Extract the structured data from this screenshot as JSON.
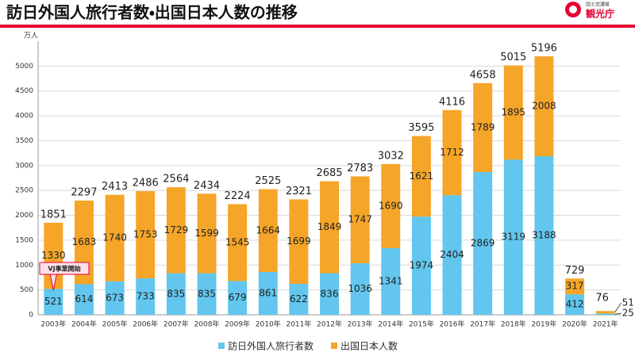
{
  "header": {
    "title": "訪日外国人旅行者数・出国日本人数の推移",
    "ministry": "国土交通省",
    "agency": "観光庁"
  },
  "chart_data": {
    "type": "bar",
    "stacked": true,
    "y_label": "万人",
    "annotation": "VJ事業開始",
    "categories": [
      "2003年",
      "2004年",
      "2005年",
      "2006年",
      "2007年",
      "2008年",
      "2009年",
      "2010年",
      "2011年",
      "2012年",
      "2013年",
      "2014年",
      "2015年",
      "2016年",
      "2017年",
      "2018年",
      "2019年",
      "2020年",
      "2021年"
    ],
    "series": [
      {
        "name": "訪日外国人旅行者数",
        "color": "#62c6ee",
        "values": [
          521,
          614,
          673,
          733,
          835,
          835,
          679,
          861,
          622,
          836,
          1036,
          1341,
          1974,
          2404,
          2869,
          3119,
          3188,
          412,
          25
        ]
      },
      {
        "name": "出国日本人数",
        "color": "#f5a528",
        "values": [
          1330,
          1683,
          1740,
          1753,
          1729,
          1599,
          1545,
          1664,
          1699,
          1849,
          1747,
          1690,
          1621,
          1712,
          1789,
          1895,
          2008,
          317,
          51
        ]
      }
    ],
    "totals": [
      1851,
      2297,
      2413,
      2486,
      2564,
      2434,
      2224,
      2525,
      2321,
      2685,
      2783,
      3032,
      3595,
      4116,
      4658,
      5015,
      5196,
      729,
      76
    ],
    "ylim": [
      0,
      5500
    ],
    "yticks": [
      0,
      500,
      1000,
      1500,
      2000,
      2500,
      3000,
      3500,
      4000,
      4500,
      5000
    ],
    "grid": true
  }
}
